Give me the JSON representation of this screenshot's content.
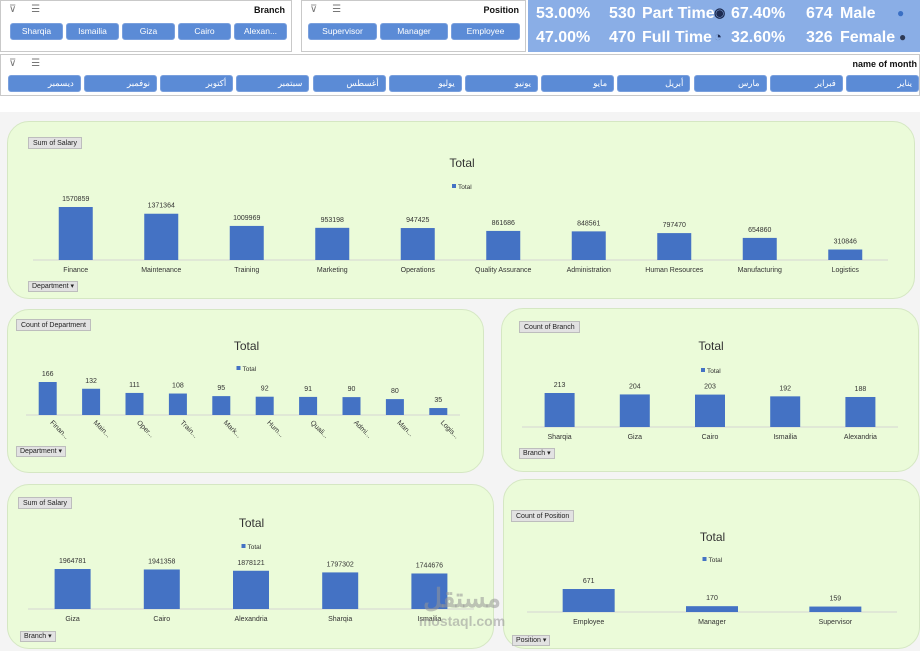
{
  "branch_slicer": {
    "title": "Branch",
    "items": [
      "Sharqia",
      "Ismailia",
      "Giza",
      "Cairo",
      "Alexan..."
    ]
  },
  "position_slicer": {
    "title": "Position",
    "items": [
      "Supervisor",
      "Manager",
      "Employee"
    ]
  },
  "month_slicer": {
    "title": "name of month",
    "items": [
      "يناير",
      "فبراير",
      "مارس",
      "أبريل",
      "مايو",
      "يونيو",
      "يوليو",
      "أغسطس",
      "سبتمبر",
      "أكتوبر",
      "نوفمبر",
      "ديسمبر"
    ]
  },
  "kpis": {
    "row1": {
      "pct_a": "53.00%",
      "num_a": "530",
      "label_a": "Part Time",
      "pct_b": "67.40%",
      "num_b": "674",
      "label_b": "Male"
    },
    "row2": {
      "pct_a": "47.00%",
      "num_a": "470",
      "label_a": "Full Time",
      "pct_b": "32.60%",
      "num_b": "326",
      "label_b": "Female"
    }
  },
  "watermark": {
    "brand": "مستقل",
    "site": "mostaql.com"
  },
  "chart_data": [
    {
      "type": "bar",
      "title": "Total",
      "legend": "Total",
      "measure": "Sum of Salary",
      "field_button": "Department",
      "categories": [
        "Finance",
        "Maintenance",
        "Training",
        "Marketing",
        "Operations",
        "Quality Assurance",
        "Administration",
        "Human Resources",
        "Manufacturing",
        "Logistics"
      ],
      "values": [
        1570859,
        1371364,
        1009969,
        953198,
        947425,
        861686,
        848561,
        797470,
        654860,
        310846
      ],
      "value_labels": [
        "1570859",
        "1371364",
        "1009969",
        "953198",
        "947425",
        "861686",
        "848561",
        "797470",
        "654860",
        "310846"
      ]
    },
    {
      "type": "bar",
      "title": "Total",
      "legend": "Total",
      "measure": "Count of Department",
      "field_button": "Department",
      "categories": [
        "Finan...",
        "Main...",
        "Oper...",
        "Train...",
        "Mark...",
        "Hum...",
        "Quali...",
        "Admi...",
        "Man...",
        "Logis..."
      ],
      "values": [
        166,
        132,
        111,
        108,
        95,
        92,
        91,
        90,
        80,
        35
      ],
      "value_labels": [
        "166",
        "132",
        "111",
        "108",
        "95",
        "92",
        "91",
        "90",
        "80",
        "35"
      ]
    },
    {
      "type": "bar",
      "title": "Total",
      "legend": "Total",
      "measure": "Count of Branch",
      "field_button": "Branch",
      "categories": [
        "Sharqia",
        "Giza",
        "Cairo",
        "Ismailia",
        "Alexandria"
      ],
      "values": [
        213,
        204,
        203,
        192,
        188
      ],
      "value_labels": [
        "213",
        "204",
        "203",
        "192",
        "188"
      ]
    },
    {
      "type": "bar",
      "title": "Total",
      "legend": "Total",
      "measure": "Sum of Salary",
      "field_button": "Branch",
      "categories": [
        "Giza",
        "Cairo",
        "Alexandria",
        "Sharqia",
        "Ismailia"
      ],
      "values": [
        1964781,
        1941358,
        1878121,
        1797302,
        1744676
      ],
      "value_labels": [
        "1964781",
        "1941358",
        "1878121",
        "1797302",
        "1744676"
      ]
    },
    {
      "type": "bar",
      "title": "Total",
      "legend": "Total",
      "measure": "Count of Position",
      "field_button": "Position",
      "categories": [
        "Employee",
        "Manager",
        "Supervisor"
      ],
      "values": [
        671,
        170,
        159
      ],
      "value_labels": [
        "671",
        "170",
        "159"
      ]
    }
  ]
}
